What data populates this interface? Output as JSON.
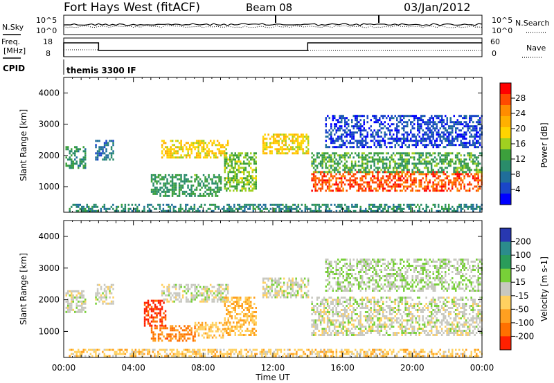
{
  "header": {
    "station": "Fort Hays West (fitACF)",
    "beam": "Beam 08",
    "date": "03/Jan/2012"
  },
  "top_panels": {
    "nsky_label": "N.Sky",
    "nsearch_label": "N.Search",
    "freq_label_line1": "Freq.",
    "freq_label_line2": "[MHz]",
    "nave_label": "Nave",
    "cpid_label": "CPID",
    "cpid_text": "themis 3300 IF",
    "noise_ticks_left": [
      "10^5",
      "10^0"
    ],
    "noise_ticks_right": [
      "10^5",
      "10^0"
    ],
    "freq_ticks": [
      "18",
      "8"
    ],
    "nave_ticks": [
      "60",
      "0"
    ]
  },
  "colorbars": {
    "power": {
      "label": "Power [dB]",
      "ticks": [
        "28",
        "24",
        "20",
        "16",
        "12",
        "8",
        "4"
      ],
      "colors": [
        "#ff0000",
        "#ff4a00",
        "#ff8c00",
        "#ffb000",
        "#ffd400",
        "#a0d020",
        "#3ca03c",
        "#2a8c6a",
        "#206e9a",
        "#1a46c8",
        "#0000ff"
      ]
    },
    "velocity": {
      "label": "Velocity [m s-1]",
      "ticks": [
        "200",
        "100",
        "50",
        "15",
        "-15",
        "-50",
        "-100",
        "-200"
      ],
      "colors": [
        "#2838b0",
        "#2b8c8c",
        "#2a9c5a",
        "#78d038",
        "#c8c8c0",
        "#ffd060",
        "#ffa020",
        "#ff7000",
        "#ff2000"
      ]
    }
  },
  "chart_data": [
    {
      "type": "heatmap",
      "title": "",
      "ylabel": "Slant Range [km]",
      "quantity": "Power [dB]",
      "yticks": [
        "1000",
        "2000",
        "3000",
        "4000"
      ],
      "ylim": [
        180,
        4500
      ],
      "xlim": [
        "00:00",
        "24:00"
      ],
      "clim": [
        0,
        30
      ],
      "regions": [
        {
          "t0": 0.1,
          "t1": 1.2,
          "r0": 1600,
          "r1": 2300,
          "v": 10
        },
        {
          "t0": 1.8,
          "t1": 2.8,
          "r0": 1900,
          "r1": 2500,
          "v": 7
        },
        {
          "t0": 5.6,
          "t1": 9.4,
          "r0": 1950,
          "r1": 2500,
          "v": 18
        },
        {
          "t0": 5.0,
          "t1": 9.0,
          "r0": 700,
          "r1": 1400,
          "v": 11
        },
        {
          "t0": 9.2,
          "t1": 11.0,
          "r0": 900,
          "r1": 2100,
          "v": 14
        },
        {
          "t0": 11.4,
          "t1": 14.0,
          "r0": 2100,
          "r1": 2700,
          "v": 18
        },
        {
          "t0": 14.2,
          "t1": 24.0,
          "r0": 900,
          "r1": 1500,
          "v": 26
        },
        {
          "t0": 14.2,
          "t1": 24.0,
          "r0": 1500,
          "r1": 2100,
          "v": 12
        },
        {
          "t0": 15.0,
          "t1": 24.0,
          "r0": 2300,
          "r1": 3300,
          "v": 4
        },
        {
          "t0": 0.3,
          "t1": 24.0,
          "r0": 250,
          "r1": 450,
          "v": 9
        }
      ]
    },
    {
      "type": "heatmap",
      "title": "",
      "ylabel": "Slant Range [km]",
      "xlabel": "Time UT",
      "quantity": "Velocity [m s-1]",
      "xticks": [
        "00:00",
        "04:00",
        "08:00",
        "12:00",
        "16:00",
        "20:00",
        "00:00"
      ],
      "yticks": [
        "1000",
        "2000",
        "3000",
        "4000"
      ],
      "ylim": [
        180,
        4500
      ],
      "xlim": [
        "00:00",
        "24:00"
      ],
      "clim": [
        -250,
        250
      ],
      "regions": [
        {
          "t0": 0.1,
          "t1": 1.2,
          "r0": 1600,
          "r1": 2300,
          "v": 0
        },
        {
          "t0": 1.8,
          "t1": 2.8,
          "r0": 1900,
          "r1": 2500,
          "v": 0
        },
        {
          "t0": 5.6,
          "t1": 9.4,
          "r0": 1950,
          "r1": 2500,
          "v": 0
        },
        {
          "t0": 5.0,
          "t1": 7.5,
          "r0": 700,
          "r1": 1200,
          "v": -150
        },
        {
          "t0": 4.6,
          "t1": 5.8,
          "r0": 1200,
          "r1": 2000,
          "v": -220
        },
        {
          "t0": 7.5,
          "t1": 9.2,
          "r0": 800,
          "r1": 1300,
          "v": -70
        },
        {
          "t0": 9.2,
          "t1": 11.0,
          "r0": 900,
          "r1": 2100,
          "v": -80
        },
        {
          "t0": 11.4,
          "t1": 14.0,
          "r0": 2100,
          "r1": 2700,
          "v": 0
        },
        {
          "t0": 14.2,
          "t1": 24.0,
          "r0": 900,
          "r1": 2100,
          "v": 0
        },
        {
          "t0": 15.0,
          "t1": 24.0,
          "r0": 2300,
          "r1": 3300,
          "v": 20
        },
        {
          "t0": 0.3,
          "t1": 24.0,
          "r0": 250,
          "r1": 450,
          "v": -60
        }
      ]
    }
  ]
}
